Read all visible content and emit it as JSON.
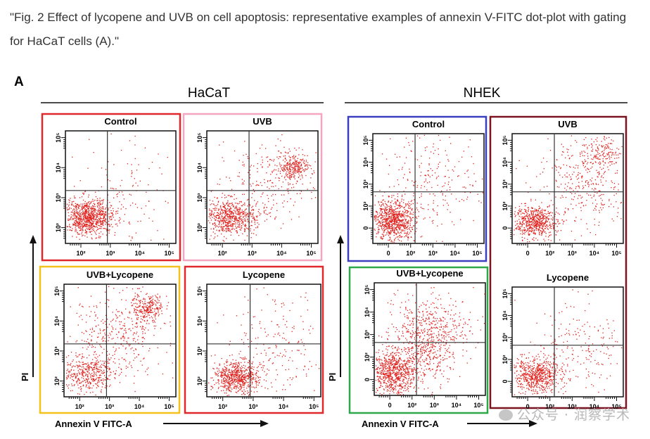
{
  "caption": "\"Fig. 2 Effect of lycopene and UVB on cell apoptosis: representative examples of annexin V-FITC dot-plot with gating for HaCaT cells (A).\"",
  "figure": {
    "panel_letter": "A",
    "y_axis_label": "PI",
    "x_axis_label": "Annexin V FITC-A",
    "dot_color": "#e0201b",
    "groups": [
      {
        "title": "HaCaT",
        "x_ticks": [
          "10²",
          "10³",
          "10⁴",
          "10⁵"
        ],
        "y_ticks": [
          "10²",
          "10³",
          "10⁴",
          "10⁵"
        ],
        "panels": [
          {
            "label": "Control",
            "frame_color": "#e0282c",
            "clusters": "dense_lowleft"
          },
          {
            "label": "UVB",
            "frame_color": "#f4a6c0",
            "clusters": "uvb_hacat"
          },
          {
            "label": "UVB+Lycopene",
            "frame_color": "#f5c21b",
            "clusters": "uvblyco_hacat"
          },
          {
            "label": "Lycopene",
            "frame_color": "#e0282c",
            "clusters": "lyco_hacat"
          }
        ]
      },
      {
        "title": "NHEK",
        "x_ticks": [
          "0",
          "10²",
          "10³",
          "10⁴",
          "10⁵"
        ],
        "y_ticks": [
          "0",
          "10²",
          "10³",
          "10⁴",
          "10⁵"
        ],
        "panels": [
          {
            "label": "Control",
            "frame_color": "#3b3fbf",
            "clusters": "control_nhek"
          },
          {
            "label": "UVB",
            "frame_color": "#7a1420",
            "clusters": "uvb_nhek"
          },
          {
            "label": "UVB+Lycopene",
            "frame_color": "#2fa84a",
            "clusters": "uvblyco_nhek"
          },
          {
            "label": "Lycopene",
            "frame_color": "#7a1420",
            "clusters": "lyco_nhek"
          }
        ]
      }
    ],
    "watermark": "公众号 · 润察学术"
  }
}
